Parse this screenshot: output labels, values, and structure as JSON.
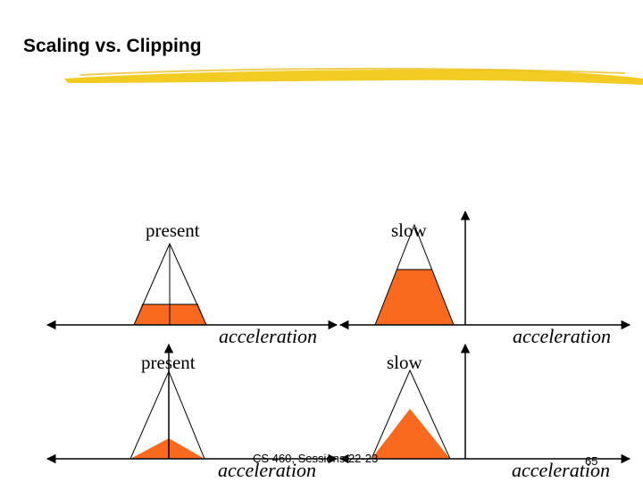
{
  "slide": {
    "title": "Scaling vs. Clipping",
    "footer": "CS 460, Sessions 22-23",
    "page_number": "65",
    "colors": {
      "title_underline": "#f2cc22",
      "fill": "#f96a1e",
      "axis": "#000000"
    }
  },
  "panels": [
    {
      "variant": "clipping",
      "label_set": "present",
      "axis_label": "acceleration"
    },
    {
      "variant": "clipping",
      "label_set": "slow",
      "axis_label": "acceleration"
    },
    {
      "variant": "scaling",
      "label_set": "present",
      "axis_label": "acceleration"
    },
    {
      "variant": "scaling",
      "label_set": "slow",
      "axis_label": "acceleration"
    }
  ],
  "labels": {
    "present": "present",
    "slow": "slow"
  }
}
